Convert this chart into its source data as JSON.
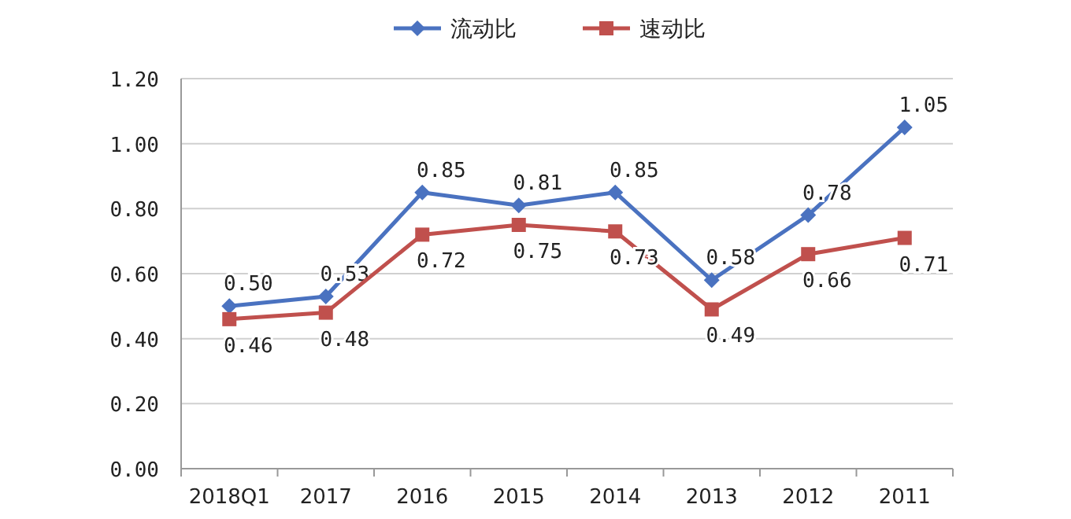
{
  "chart_data": {
    "type": "line",
    "categories": [
      "2018Q1",
      "2017",
      "2016",
      "2015",
      "2014",
      "2013",
      "2012",
      "2011"
    ],
    "series": [
      {
        "name": "流动比",
        "color": "#4a72c0",
        "marker": "diamond",
        "values": [
          0.5,
          0.53,
          0.85,
          0.81,
          0.85,
          0.58,
          0.78,
          1.05
        ],
        "value_labels": [
          "0.50",
          "0.53",
          "0.85",
          "0.81",
          "0.85",
          "0.58",
          "0.78",
          "1.05"
        ]
      },
      {
        "name": "速动比",
        "color": "#c0504d",
        "marker": "square",
        "values": [
          0.46,
          0.48,
          0.72,
          0.75,
          0.73,
          0.49,
          0.66,
          0.71
        ],
        "value_labels": [
          "0.46",
          "0.48",
          "0.72",
          "0.75",
          "0.73",
          "0.49",
          "0.66",
          "0.71"
        ]
      }
    ],
    "ylim": [
      0,
      1.2
    ],
    "yticks": [
      {
        "value": 0,
        "label": "0.00"
      },
      {
        "value": 0.2,
        "label": "0.20"
      },
      {
        "value": 0.4,
        "label": "0.40"
      },
      {
        "value": 0.6,
        "label": "0.60"
      },
      {
        "value": 0.8,
        "label": "0.80"
      },
      {
        "value": 1,
        "label": "1.00"
      },
      {
        "value": 1.2,
        "label": "1.20"
      }
    ],
    "grid": "y",
    "legend": "top",
    "line_style": "solid"
  }
}
